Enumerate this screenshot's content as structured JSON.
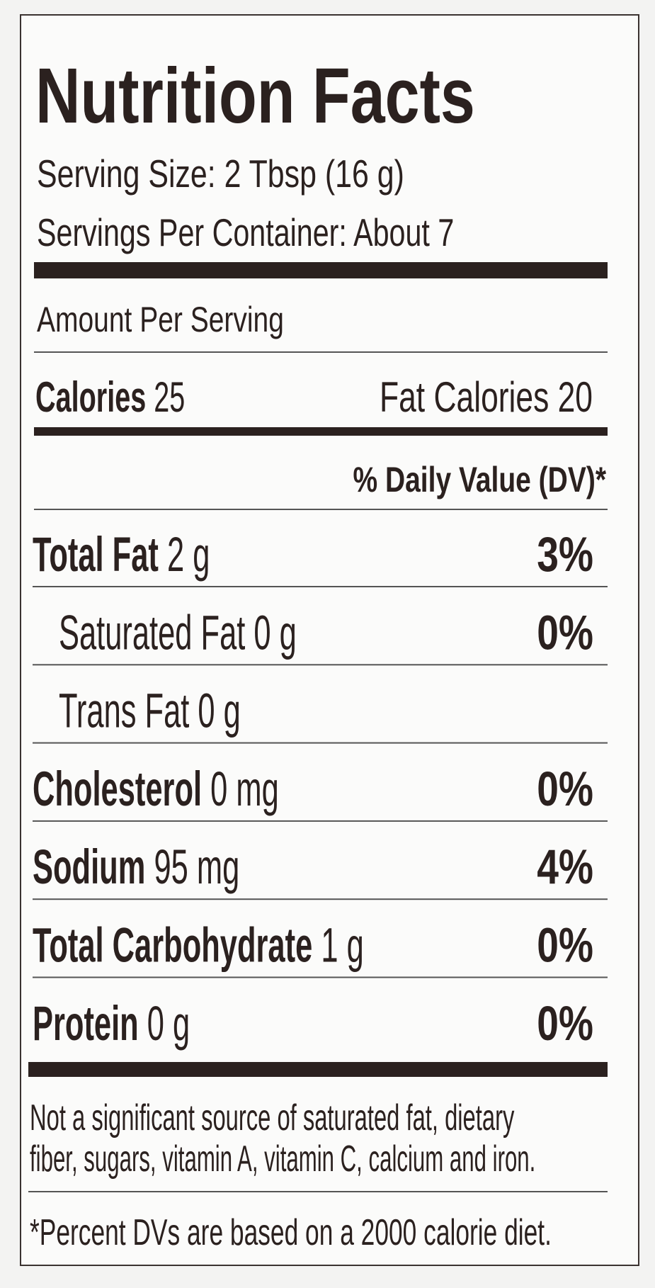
{
  "title": "Nutrition Facts",
  "serving_size": "Serving Size: 2 Tbsp (16 g)",
  "servings_per_container": "Servings Per Container: About 7",
  "amount_per_serving": "Amount Per Serving",
  "calories": {
    "label": "Calories",
    "value": "25"
  },
  "fat_calories": "Fat Calories 20",
  "daily_value_header": "% Daily Value (DV)*",
  "nutrients": [
    {
      "name": "Total Fat",
      "amount": "2 g",
      "dv": "3%",
      "indent": false
    },
    {
      "name": "Saturated Fat",
      "amount": "0 g",
      "dv": "0%",
      "indent": true
    },
    {
      "name": "Trans Fat",
      "amount": "0 g",
      "indent": true
    },
    {
      "name": "Cholesterol",
      "amount": "0 mg",
      "dv": "0%",
      "indent": false
    },
    {
      "name": "Sodium",
      "amount": "95 mg",
      "dv": "4%",
      "indent": false
    },
    {
      "name": "Total Carbohydrate",
      "amount": "1 g",
      "dv": "0%",
      "indent": false
    },
    {
      "name": "Protein",
      "amount": "0 g",
      "dv": "0%",
      "indent": false
    }
  ],
  "footnotes": [
    "Not a significant source of saturated fat, dietary",
    "fiber, sugars, vitamin A, vitamin C, calcium and iron.",
    "*Percent DVs are based on a 2000 calorie diet."
  ]
}
